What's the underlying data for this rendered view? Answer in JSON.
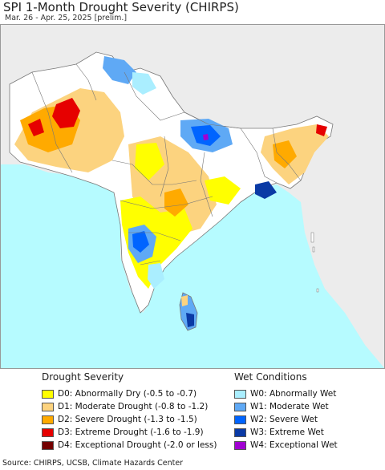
{
  "title": "SPI 1-Month Drought Severity (CHIRPS)",
  "subtitle": "Mar. 26 - Apr. 25, 2025 [prelim.]",
  "colors": {
    "ocean": "#b6fbff",
    "land_outside": "#ececec",
    "land_normal": "#ffffff",
    "border": "#777777"
  },
  "legend": {
    "drought": {
      "title": "Drought Severity",
      "items": [
        {
          "label": "D0: Abnormally Dry (-0.5 to -0.7)",
          "color": "#ffff00"
        },
        {
          "label": "D1: Moderate Drought (-0.8 to -1.2)",
          "color": "#fcd37f"
        },
        {
          "label": "D2: Severe Drought (-1.3 to -1.5)",
          "color": "#ffaa00"
        },
        {
          "label": "D3: Extreme Drought (-1.6 to -1.9)",
          "color": "#e60000"
        },
        {
          "label": "D4: Exceptional Drought (-2.0 or less)",
          "color": "#730000"
        }
      ]
    },
    "wet": {
      "title": "Wet Conditions",
      "items": [
        {
          "label": "W0: Abnormally Wet",
          "color": "#aaeeff"
        },
        {
          "label": "W1: Moderate Wet",
          "color": "#5fa9f5"
        },
        {
          "label": "W2: Severe Wet",
          "color": "#0064ff"
        },
        {
          "label": "W3: Extreme Wet",
          "color": "#0a3aa5"
        },
        {
          "label": "W4: Exceptional Wet",
          "color": "#a000d2"
        }
      ]
    }
  },
  "source": "Source: CHIRPS, UCSB, Climate Hazards Center"
}
